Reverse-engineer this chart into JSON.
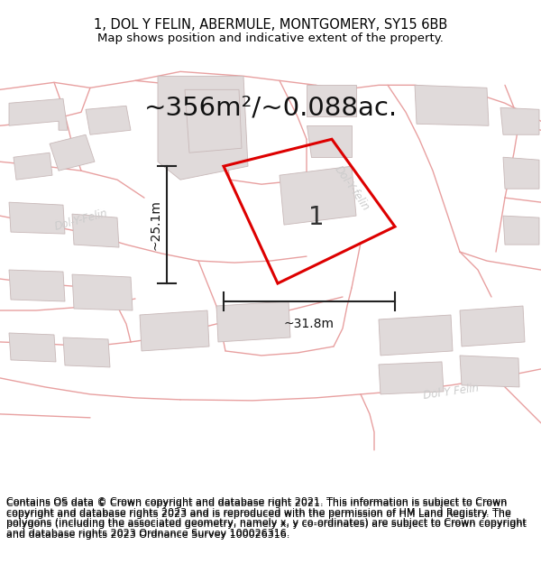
{
  "title_line1": "1, DOL Y FELIN, ABERMULE, MONTGOMERY, SY15 6BB",
  "title_line2": "Map shows position and indicative extent of the property.",
  "area_text": "~356m²/~0.088ac.",
  "width_label": "~31.8m",
  "height_label": "~25.1m",
  "plot_number": "1",
  "footer_text": "Contains OS data © Crown copyright and database right 2021. This information is subject to Crown copyright and database rights 2023 and is reproduced with the permission of HM Land Registry. The polygons (including the associated geometry, namely x, y co-ordinates) are subject to Crown copyright and database rights 2023 Ordnance Survey 100026316.",
  "bg_color": "#ffffff",
  "map_bg": "#ffffff",
  "road_color": "#e8a0a0",
  "road_fill": "#f0e8e8",
  "building_color": "#e0dada",
  "building_edge": "#c8b8b8",
  "highlight_color": "#dd0000",
  "dim_line_color": "#222222",
  "road_label_color": "#cccccc",
  "title_fontsize": 10.5,
  "subtitle_fontsize": 9.5,
  "area_fontsize": 21,
  "dim_fontsize": 10,
  "plot_num_fontsize": 20,
  "footer_fontsize": 8.0
}
